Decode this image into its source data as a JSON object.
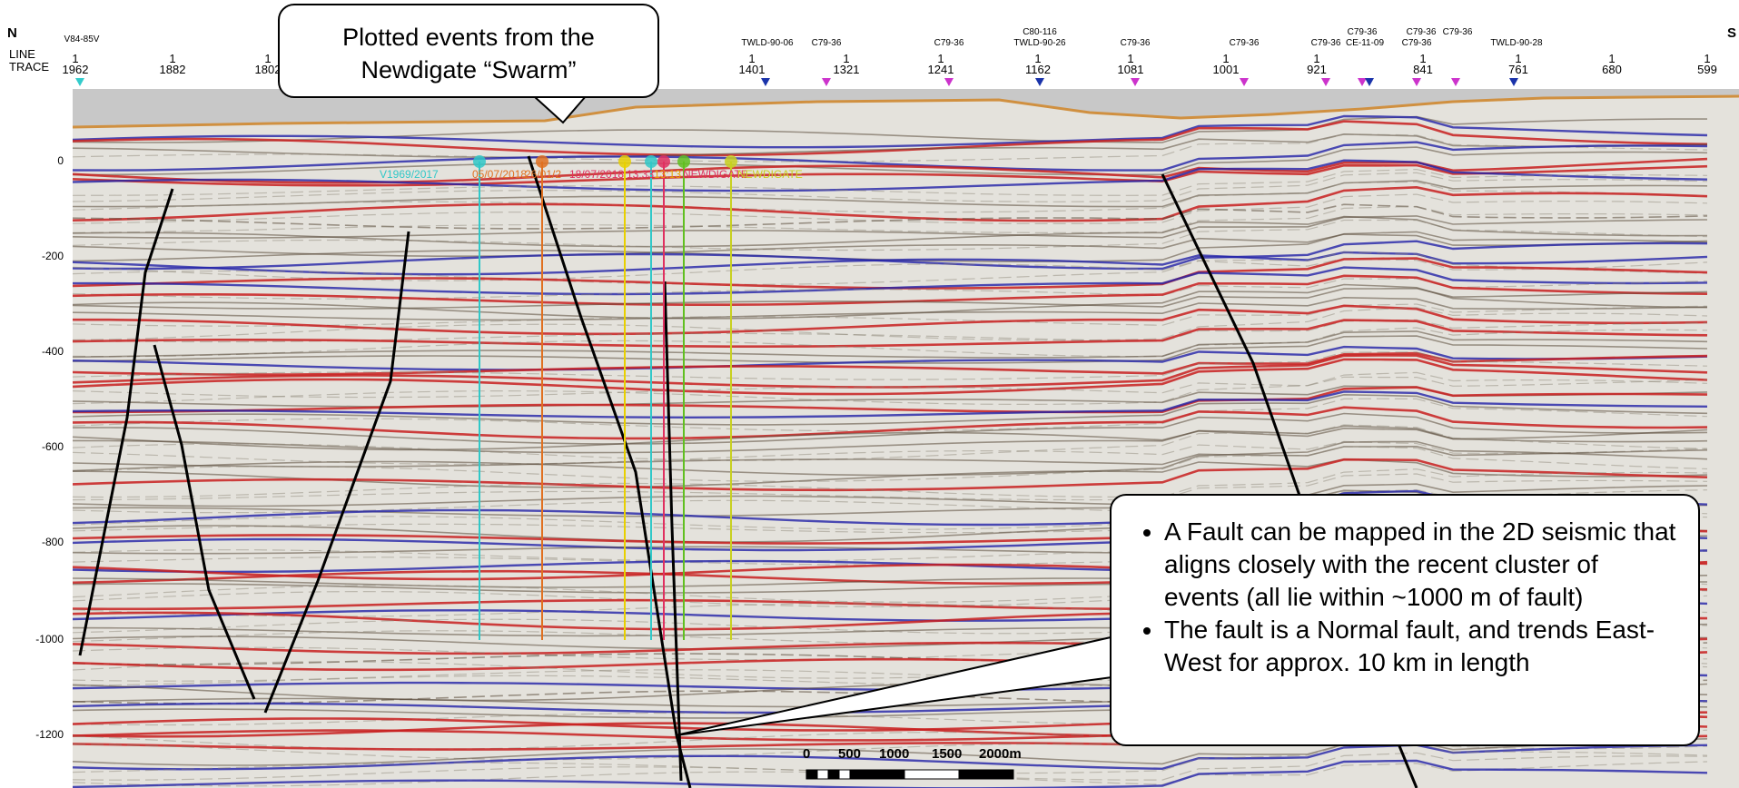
{
  "directions": {
    "north": "N",
    "south": "S"
  },
  "header": {
    "line_label": "LINE",
    "trace_label": "TRACE",
    "traces": [
      "1962",
      "1882",
      "1802",
      "1401",
      "1321",
      "1241",
      "1162",
      "1081",
      "1001",
      "921",
      "841",
      "761",
      "680",
      "599"
    ],
    "line_values": [
      "1",
      "1",
      "1",
      "1",
      "1",
      "1",
      "1",
      "1",
      "1",
      "1",
      "1",
      "1",
      "1",
      "1"
    ],
    "line_names": [
      "V84-85V",
      "TWLD-90-06",
      "C79-36",
      "C79-36",
      "C80-116",
      "TWLD-90-26",
      "C79-36",
      "C79-36",
      "C79-36",
      "C79-36",
      "CE-11-09",
      "C79-36",
      "C79-36",
      "C79-36",
      "TWLD-90-28"
    ]
  },
  "depth_axis": {
    "ticks": [
      "0",
      "-200",
      "-400",
      "-600",
      "-800",
      "-1000",
      "-1200"
    ]
  },
  "event_labels": [
    "V1969/2017",
    "05/07/2018",
    "26/01/2",
    "18/07/2018",
    "13:33",
    "13:13",
    "NEWDIGATE",
    "NEWDIGATE"
  ],
  "callouts": {
    "top": {
      "line1": "Plotted events from the",
      "line2": "Newdigate “Swarm”"
    },
    "fault": {
      "bullet1": "A Fault can be mapped in the 2D seismic that aligns closely with the recent cluster of events (all lie within ~1000 m of fault)",
      "bullet2": "The fault is a Normal fault, and trends East-West for approx. 10 km in length"
    }
  },
  "scale_bar": {
    "labels": [
      "0",
      "500",
      "1000",
      "1500",
      "2000m"
    ]
  },
  "colors": {
    "seismic_red": "#c81e1e",
    "seismic_blue": "#2222a8",
    "seismic_grey": "#c8c8c8",
    "marker_blue": "#1a33aa",
    "marker_magenta": "#cc33cc",
    "marker_cyan": "#33cccc"
  }
}
